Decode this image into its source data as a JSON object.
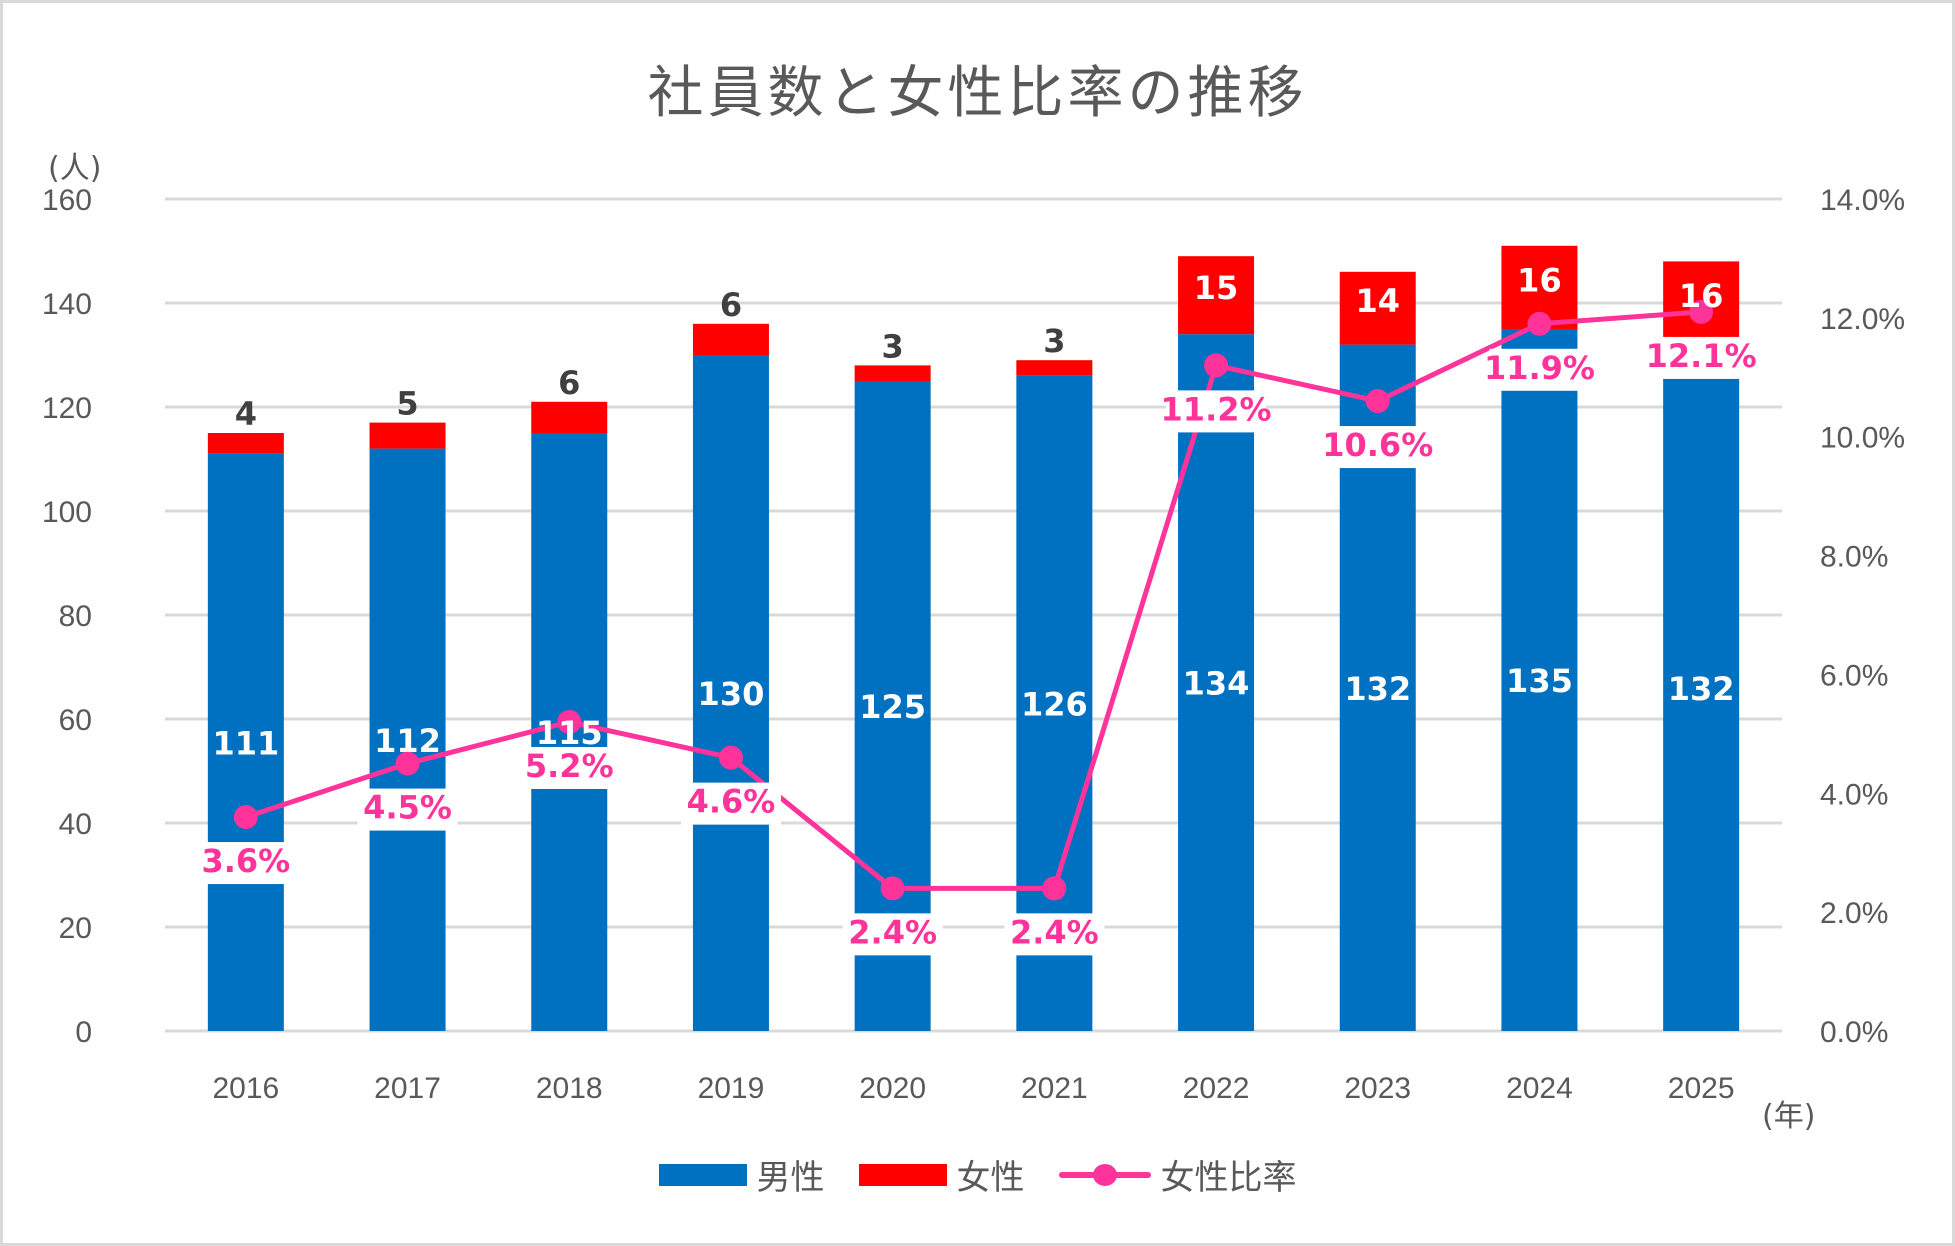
{
  "chart_data": {
    "type": "bar",
    "subtype": "stacked-bar-with-line",
    "title": "社員数と女性比率の推移",
    "xlabel": "(年)",
    "ylabel": "(人)",
    "y2label": "",
    "categories": [
      "2016",
      "2017",
      "2018",
      "2019",
      "2020",
      "2021",
      "2022",
      "2023",
      "2024",
      "2025"
    ],
    "ylim": [
      0,
      160
    ],
    "yticks": [
      "0",
      "20",
      "40",
      "60",
      "80",
      "100",
      "120",
      "140",
      "160"
    ],
    "y2lim": [
      0,
      0.14
    ],
    "y2ticks": [
      "0.0%",
      "2.0%",
      "4.0%",
      "6.0%",
      "8.0%",
      "10.0%",
      "12.0%",
      "14.0%"
    ],
    "grid": true,
    "legend_position": "bottom",
    "series": [
      {
        "name": "男性",
        "type": "bar",
        "axis": "left",
        "color": "#0070c0",
        "values": [
          111,
          112,
          115,
          130,
          125,
          126,
          134,
          132,
          135,
          132
        ]
      },
      {
        "name": "女性",
        "type": "bar",
        "axis": "left",
        "color": "#ff0000",
        "values": [
          4,
          5,
          6,
          6,
          3,
          3,
          15,
          14,
          16,
          16
        ]
      },
      {
        "name": "女性比率",
        "type": "line",
        "axis": "right",
        "color": "#ff3399",
        "values": [
          3.6,
          4.5,
          5.2,
          4.6,
          2.4,
          2.4,
          11.2,
          10.6,
          11.9,
          12.1
        ],
        "labels": [
          "3.6%",
          "4.5%",
          "5.2%",
          "4.6%",
          "2.4%",
          "2.4%",
          "11.2%",
          "10.6%",
          "11.9%",
          "12.1%"
        ]
      }
    ]
  },
  "legend": {
    "items": [
      "男性",
      "女性",
      "女性比率"
    ]
  }
}
